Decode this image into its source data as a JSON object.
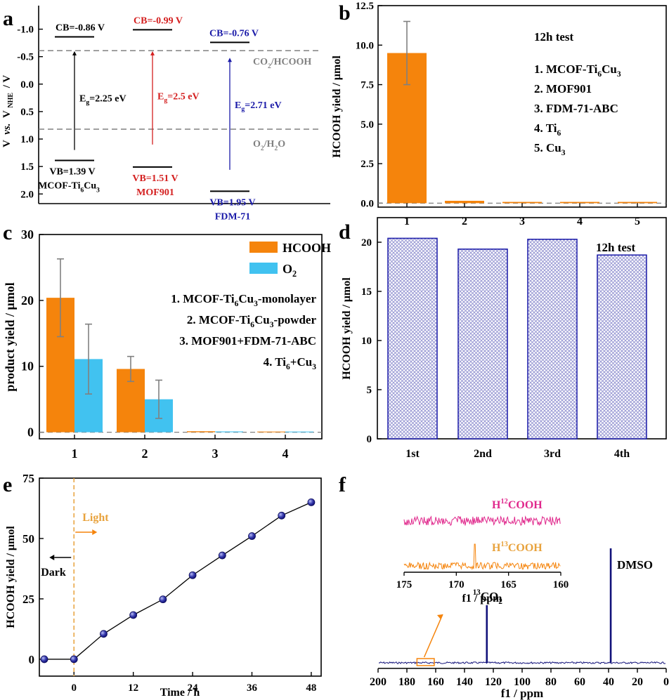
{
  "colors": {
    "orange": "#f5840c",
    "blue_light": "#41c2f0",
    "navy": "#12127a",
    "red": "#d42020",
    "blue": "#1a1aa8",
    "gray": "#808080",
    "pink": "#e0288c",
    "hatch": "#9a9ad4"
  },
  "chart_data": [
    {
      "panel": "a",
      "type": "band-diagram",
      "ylabel_main": "V",
      "ylabel_vs": "vs.",
      "ylabel_rest": "V",
      "ylabel_sub": "NHE",
      "ylabel_unit": "/ V",
      "ylim": [
        -1.25,
        2.15
      ],
      "y_reversed": true,
      "yticks": [
        "-1.0",
        "-0.5",
        "0.0",
        "0.5",
        "1.0",
        "1.5",
        "2.0"
      ],
      "ytick_values": [
        -1.0,
        -0.5,
        0.0,
        0.5,
        1.0,
        1.5,
        2.0
      ],
      "references": [
        {
          "value": -0.61,
          "label_pre": "CO",
          "label_sub": "2",
          "label_post": "/HCOOH"
        },
        {
          "value": 0.82,
          "label_pre": "O",
          "label_sub": "2",
          "label_post": "/H",
          "label_sub2": "2",
          "label_post2": "O"
        }
      ],
      "materials": [
        {
          "name_pre": "MCOF-Ti",
          "name_sub1": "6",
          "name_mid": "Cu",
          "name_sub2": "3",
          "cb": -0.86,
          "vb": 1.39,
          "cb_label": "CB=-0.86 V",
          "vb_label": "VB=1.39 V",
          "eg_pre": "E",
          "eg_sub": "g",
          "eg_val": "=2.25 eV",
          "color": "#000000"
        },
        {
          "name_pre": "MOF901",
          "name_sub1": "",
          "name_mid": "",
          "name_sub2": "",
          "cb": -0.99,
          "vb": 1.51,
          "cb_label": "CB=-0.99 V",
          "vb_label": "VB=1.51 V",
          "eg_pre": "E",
          "eg_sub": "g",
          "eg_val": "=2.5 eV",
          "color": "#d42020"
        },
        {
          "name_pre": "FDM-71",
          "name_sub1": "",
          "name_mid": "",
          "name_sub2": "",
          "cb": -0.76,
          "vb": 1.95,
          "cb_label": "CB=-0.76 V",
          "vb_label": "VB=1.95 V",
          "eg_pre": "E",
          "eg_sub": "g",
          "eg_val": "=2.71 eV",
          "color": "#1a1aa8"
        }
      ]
    },
    {
      "panel": "b",
      "type": "bar",
      "ylabel": "HCOOH yield / μmol",
      "ylim": [
        -0.25,
        12.5
      ],
      "yticks": [
        "0.0",
        "2.5",
        "5.0",
        "7.5",
        "10.0",
        "12.5"
      ],
      "ytick_values": [
        0,
        2.5,
        5,
        7.5,
        10,
        12.5
      ],
      "categories": [
        "1",
        "2",
        "3",
        "4",
        "5"
      ],
      "values": [
        9.5,
        0.15,
        0.08,
        0.08,
        0.08
      ],
      "errors": [
        2.0,
        0,
        0,
        0,
        0
      ],
      "legend_title": "12h test",
      "legend_items": [
        {
          "pre": "1. MCOF-Ti",
          "sub": "6",
          "mid": "Cu",
          "sub2": "3"
        },
        {
          "pre": "2. MOF901",
          "sub": "",
          "mid": "",
          "sub2": ""
        },
        {
          "pre": "3. FDM-71-ABC",
          "sub": "",
          "mid": "",
          "sub2": ""
        },
        {
          "pre": "4. Ti",
          "sub": "6",
          "mid": "",
          "sub2": ""
        },
        {
          "pre": "5. Cu",
          "sub": "3",
          "mid": "",
          "sub2": ""
        }
      ]
    },
    {
      "panel": "c",
      "type": "bar",
      "ylabel": "product yield / μmol",
      "ylim": [
        -1,
        30
      ],
      "yticks": [
        "0",
        "10",
        "20",
        "30"
      ],
      "ytick_values": [
        0,
        10,
        20,
        30
      ],
      "categories": [
        "1",
        "2",
        "3",
        "4"
      ],
      "series": [
        {
          "name": "HCOOH",
          "name_sub": "",
          "values": [
            20.4,
            9.6,
            0.15,
            0.1
          ],
          "errors": [
            5.9,
            1.9,
            0,
            0
          ]
        },
        {
          "name": "O",
          "name_sub": "2",
          "values": [
            11.1,
            5.0,
            0.12,
            0.1
          ],
          "errors": [
            5.3,
            2.9,
            0,
            0
          ]
        }
      ],
      "legend_items": [
        {
          "pre": "1. MCOF-Ti",
          "sub": "6",
          "mid": "Cu",
          "sub2": "3",
          "post": "-monolayer"
        },
        {
          "pre": "2. MCOF-Ti",
          "sub": "6",
          "mid": "Cu",
          "sub2": "3",
          "post": "-powder"
        },
        {
          "pre": "3. MOF901+FDM-71-ABC",
          "sub": "",
          "mid": "",
          "sub2": "",
          "post": ""
        },
        {
          "pre": "4. Ti",
          "sub": "6",
          "mid": "+Cu",
          "sub2": "3",
          "post": ""
        }
      ]
    },
    {
      "panel": "d",
      "type": "bar",
      "ylabel": "HCOOH yield / μmol",
      "ylim": [
        0,
        22.5
      ],
      "yticks": [
        "0",
        "5",
        "10",
        "15",
        "20"
      ],
      "ytick_values": [
        0,
        5,
        10,
        15,
        20
      ],
      "categories": [
        "1st",
        "2nd",
        "3rd",
        "4th"
      ],
      "values": [
        20.4,
        19.3,
        20.3,
        18.7
      ],
      "legend_title": "12h test"
    },
    {
      "panel": "e",
      "type": "line",
      "xlabel": "Time / h",
      "ylabel": "HCOOH yield / μmol",
      "xlim": [
        -7,
        50
      ],
      "ylim": [
        -7,
        75
      ],
      "xticks": [
        "0",
        "12",
        "24",
        "36",
        "48"
      ],
      "xtick_values": [
        0,
        12,
        24,
        36,
        48
      ],
      "yticks": [
        "0",
        "25",
        "50",
        "75"
      ],
      "ytick_values": [
        0,
        25,
        50,
        75
      ],
      "x": [
        -6,
        0,
        6,
        12,
        18,
        24,
        30,
        36,
        42,
        48
      ],
      "y": [
        0,
        0,
        10.5,
        18.3,
        24.8,
        34.8,
        43.0,
        51.0,
        59.5,
        65.0
      ],
      "annotations": {
        "light": "Light",
        "dark": "Dark"
      }
    },
    {
      "panel": "f",
      "type": "line",
      "xlabel": "f1 / ppm",
      "xlim": [
        200,
        0
      ],
      "x_reversed": true,
      "xticks": [
        "200",
        "180",
        "160",
        "140",
        "120",
        "100",
        "80",
        "60",
        "40",
        "20",
        "0"
      ],
      "xtick_values": [
        200,
        180,
        160,
        140,
        120,
        100,
        80,
        60,
        40,
        20,
        0
      ],
      "peaks": [
        {
          "ppm": 124.5,
          "height": 0.45,
          "label_pre": "",
          "label_sup": "13",
          "label_mid": "CO",
          "label_sub": "2"
        },
        {
          "ppm": 38.5,
          "height": 1.0,
          "label_pre": "DMSO",
          "label_sup": "",
          "label_mid": "",
          "label_sub": ""
        }
      ],
      "inset": {
        "xlabel": "f1 / ppm",
        "xlim": [
          175,
          160
        ],
        "xticks": [
          "175",
          "170",
          "165",
          "160"
        ],
        "xtick_values": [
          175,
          170,
          165,
          160
        ],
        "trace_top": {
          "pre": "H",
          "sup": "12",
          "post": "COOH"
        },
        "trace_bottom": {
          "pre": "H",
          "sup": "13",
          "post": "COOH",
          "peak_ppm": 168.2
        },
        "zoom_range_ppm": [
          173,
          161
        ]
      }
    }
  ],
  "panel_labels": [
    "a",
    "b",
    "c",
    "d",
    "e",
    "f"
  ]
}
